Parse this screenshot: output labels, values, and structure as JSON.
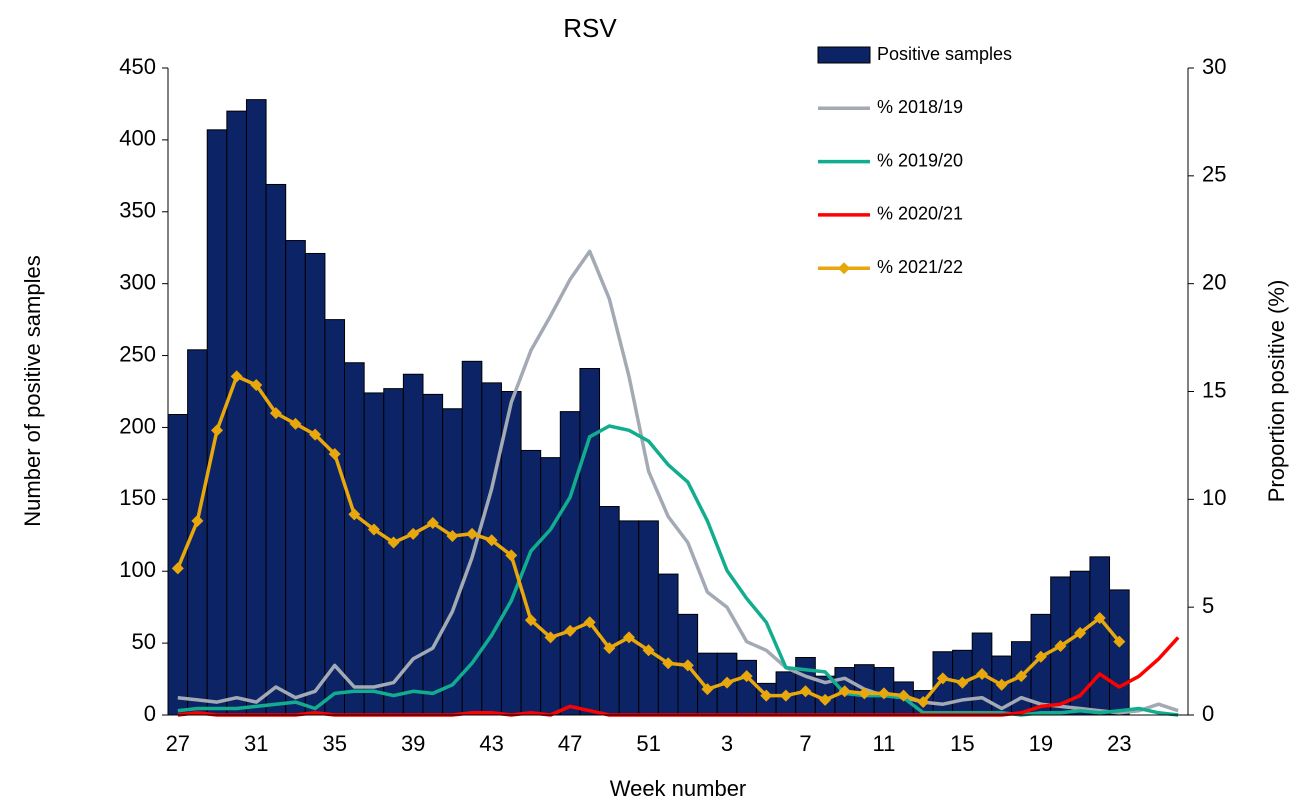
{
  "chart_data": {
    "type": "bar",
    "title": "RSV",
    "x_label": "Week number",
    "y_label": "Number of positive samples",
    "y2_label": "Proportion positive (%)",
    "categories": [
      "27",
      null,
      null,
      null,
      "31",
      null,
      null,
      null,
      "35",
      null,
      null,
      null,
      "39",
      null,
      null,
      null,
      "43",
      null,
      null,
      null,
      "47",
      null,
      null,
      null,
      "51",
      null,
      null,
      null,
      "3",
      null,
      null,
      null,
      "7",
      null,
      null,
      null,
      "11",
      null,
      null,
      null,
      "15",
      null,
      null,
      null,
      "19",
      null,
      null,
      null,
      "23",
      null,
      null,
      null
    ],
    "ylim": [
      0,
      450
    ],
    "yticks": [
      0,
      50,
      100,
      150,
      200,
      250,
      300,
      350,
      400,
      450
    ],
    "y2lim": [
      0,
      30
    ],
    "y2ticks": [
      0,
      5,
      10,
      15,
      20,
      25,
      30
    ],
    "legend": "top",
    "series": [
      {
        "name": "Positive samples",
        "type": "bar",
        "color": "#0c2466",
        "values": [
          209,
          254,
          407,
          420,
          428,
          369,
          330,
          321,
          275,
          245,
          224,
          227,
          237,
          223,
          213,
          246,
          231,
          225,
          184,
          179,
          211,
          241,
          145,
          135,
          135,
          98,
          70,
          43,
          43,
          38,
          22,
          30,
          40,
          27,
          33,
          35,
          33,
          23,
          17,
          44,
          45,
          57,
          41,
          51,
          70,
          96,
          100,
          110,
          87,
          null,
          null,
          null
        ]
      },
      {
        "name": "% 2018/19",
        "type": "line",
        "axis": "y2",
        "color": "#a3aab3",
        "values": [
          0.8,
          0.7,
          0.6,
          0.8,
          0.6,
          1.3,
          0.8,
          1.1,
          2.3,
          1.3,
          1.3,
          1.5,
          2.6,
          3.1,
          4.8,
          7.3,
          10.5,
          14.5,
          16.9,
          18.5,
          20.2,
          21.5,
          19.3,
          15.7,
          11.3,
          9.2,
          8.0,
          5.7,
          5.0,
          3.4,
          3.0,
          2.2,
          1.8,
          1.5,
          1.7,
          1.2,
          0.9,
          0.8,
          0.6,
          0.5,
          0.7,
          0.8,
          0.3,
          0.8,
          0.5,
          0.4,
          0.3,
          0.2,
          0.1,
          0.2,
          0.5,
          0.2
        ]
      },
      {
        "name": "% 2019/20",
        "type": "line",
        "axis": "y2",
        "color": "#12ad8e",
        "values": [
          0.2,
          0.3,
          0.3,
          0.3,
          0.4,
          0.5,
          0.6,
          0.3,
          1.0,
          1.1,
          1.1,
          0.9,
          1.1,
          1.0,
          1.4,
          2.4,
          3.7,
          5.3,
          7.6,
          8.6,
          10.1,
          12.9,
          13.4,
          13.2,
          12.7,
          11.6,
          10.8,
          9.0,
          6.7,
          5.4,
          4.3,
          2.2,
          2.1,
          2.0,
          1.0,
          0.9,
          0.9,
          0.8,
          0.1,
          0.1,
          0.1,
          0.1,
          0.1,
          0,
          0.1,
          0.1,
          0.2,
          0.1,
          0.2,
          0.3,
          0.1,
          0
        ]
      },
      {
        "name": "% 2020/21",
        "type": "line",
        "axis": "y2",
        "color": "#ff0000",
        "values": [
          0,
          0.1,
          0,
          0,
          0,
          0,
          0,
          0.1,
          0,
          0,
          0,
          0,
          0,
          0,
          0,
          0.1,
          0.1,
          0,
          0.1,
          0,
          0.4,
          0.2,
          0,
          0,
          0,
          0,
          0,
          0,
          0,
          0,
          0,
          0,
          0,
          0,
          0,
          0,
          0,
          0,
          0,
          0,
          0,
          0,
          0,
          0.1,
          0.4,
          0.5,
          0.9,
          1.9,
          1.3,
          1.8,
          2.6,
          3.6
        ]
      },
      {
        "name": "% 2021/22",
        "type": "line",
        "axis": "y2",
        "color": "#e8a80c",
        "marker": "diamond",
        "values": [
          6.8,
          9.0,
          13.2,
          15.7,
          15.3,
          14.0,
          13.5,
          13.0,
          12.1,
          9.3,
          8.6,
          8.0,
          8.4,
          8.9,
          8.3,
          8.4,
          8.1,
          7.4,
          4.4,
          3.6,
          3.9,
          4.3,
          3.1,
          3.6,
          3.0,
          2.4,
          2.3,
          1.2,
          1.5,
          1.8,
          0.9,
          0.9,
          1.1,
          0.7,
          1.1,
          1.0,
          1.0,
          0.9,
          0.6,
          1.7,
          1.5,
          1.9,
          1.4,
          1.8,
          2.7,
          3.2,
          3.8,
          4.5,
          3.4,
          null,
          null,
          null
        ]
      }
    ]
  }
}
